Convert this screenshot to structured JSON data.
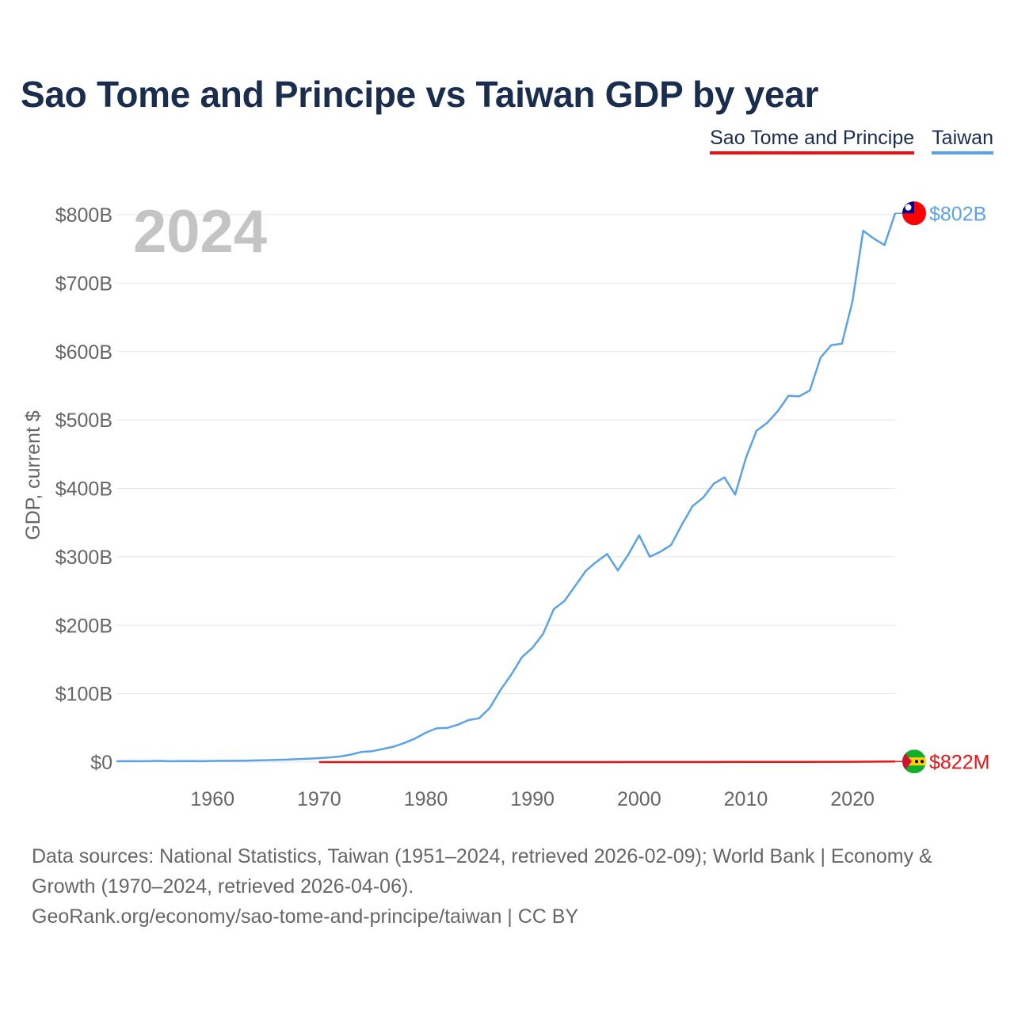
{
  "header": {
    "title": "Sao Tome and Principe vs Taiwan GDP by year"
  },
  "legend": {
    "items": [
      {
        "label": "Sao Tome and Principe",
        "color": "#ee1111"
      },
      {
        "label": "Taiwan",
        "color": "#5ba3e6"
      }
    ]
  },
  "chart_data": {
    "type": "line",
    "title": "Sao Tome and Principe vs Taiwan GDP by year",
    "year_overlay": "2024",
    "xlabel": "",
    "ylabel": "GDP, current $",
    "xlim": [
      1951,
      2024
    ],
    "ylim": [
      0,
      800
    ],
    "y_unit": "billions USD",
    "grid": true,
    "legend_position": "top-right",
    "x_ticks": [
      1960,
      1970,
      1980,
      1990,
      2000,
      2010,
      2020
    ],
    "x_tick_labels": [
      "1960",
      "1970",
      "1980",
      "1990",
      "2000",
      "2010",
      "2020"
    ],
    "y_ticks": [
      0,
      100,
      200,
      300,
      400,
      500,
      600,
      700,
      800
    ],
    "y_tick_labels": [
      "$0",
      "$100B",
      "$200B",
      "$300B",
      "$400B",
      "$500B",
      "$600B",
      "$700B",
      "$800B"
    ],
    "series": [
      {
        "name": "Taiwan",
        "color": "#5ba3e6",
        "end_label": "$802B",
        "x": [
          1951,
          1952,
          1953,
          1954,
          1955,
          1956,
          1957,
          1958,
          1959,
          1960,
          1961,
          1962,
          1963,
          1964,
          1965,
          1966,
          1967,
          1968,
          1969,
          1970,
          1971,
          1972,
          1973,
          1974,
          1975,
          1976,
          1977,
          1978,
          1979,
          1980,
          1981,
          1982,
          1983,
          1984,
          1985,
          1986,
          1987,
          1988,
          1989,
          1990,
          1991,
          1992,
          1993,
          1994,
          1995,
          1996,
          1997,
          1998,
          1999,
          2000,
          2001,
          2002,
          2003,
          2004,
          2005,
          2006,
          2007,
          2008,
          2009,
          2010,
          2011,
          2012,
          2013,
          2014,
          2015,
          2016,
          2017,
          2018,
          2019,
          2020,
          2021,
          2022,
          2023,
          2024
        ],
        "values": [
          1.2,
          1.4,
          1.3,
          1.5,
          1.8,
          1.3,
          1.5,
          1.6,
          1.3,
          1.7,
          1.8,
          1.9,
          2.1,
          2.4,
          2.8,
          3.1,
          3.6,
          4.3,
          5.0,
          5.8,
          6.8,
          8.2,
          11.0,
          14.9,
          16.0,
          19.2,
          22.6,
          28.0,
          34.5,
          42.9,
          49.3,
          49.9,
          54.7,
          61.4,
          64.0,
          79.2,
          105.5,
          127.5,
          153.0,
          167.2,
          187.4,
          223.6,
          235.5,
          257.4,
          279.5,
          292.8,
          304.1,
          280.0,
          303.8,
          331.5,
          300.0,
          307.5,
          317.4,
          346.9,
          374.1,
          386.4,
          406.9,
          416.0,
          390.8,
          444.2,
          484.0,
          495.8,
          512.9,
          535.3,
          534.5,
          543.1,
          590.8,
          609.2,
          611.4,
          673.2,
          776.5,
          765.0,
          755.7,
          802.0
        ]
      },
      {
        "name": "Sao Tome and Principe",
        "color": "#ee1111",
        "end_label": "$822M",
        "x": [
          1970,
          1975,
          1980,
          1985,
          1990,
          1995,
          2000,
          2005,
          2010,
          2015,
          2020,
          2024
        ],
        "values": [
          0.02,
          0.04,
          0.05,
          0.03,
          0.05,
          0.05,
          0.08,
          0.12,
          0.2,
          0.32,
          0.48,
          0.822
        ]
      }
    ]
  },
  "footer": {
    "sources": "Data sources: National Statistics, Taiwan (1951–2024, retrieved 2026-02-09); World Bank | Economy & Growth (1970–2024, retrieved 2026-04-06).",
    "credit": "GeoRank.org/economy/sao-tome-and-principe/taiwan | CC BY"
  }
}
